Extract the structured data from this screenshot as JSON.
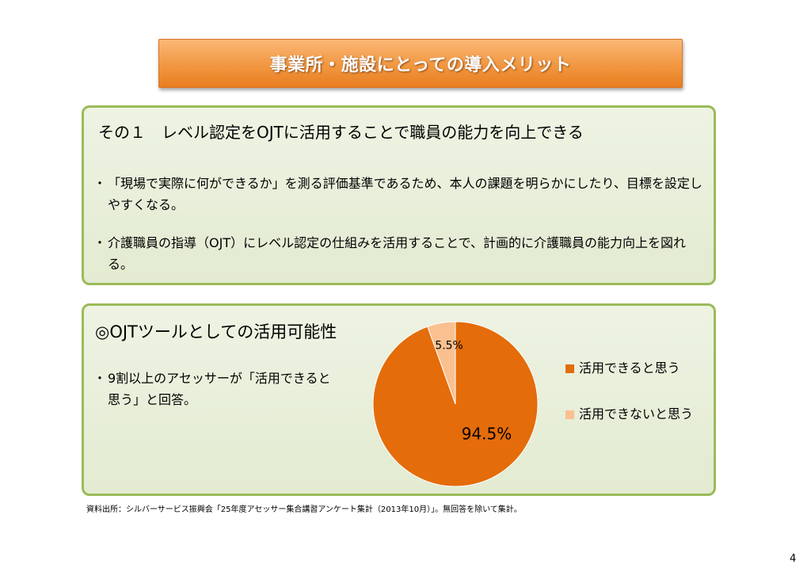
{
  "header": {
    "title": "事業所・施設にとっての導入メリット"
  },
  "panel1": {
    "heading": "その１　レベル認定をOJTに活用することで職員の能力を向上できる",
    "bullets": [
      {
        "marker": "・",
        "text": "「現場で実際に何ができるか」を測る評価基準であるため、本人の課題を明らかにしたり、目標を設定しやすくなる。"
      },
      {
        "marker": "・",
        "text": "介護職員の指導（OJT）にレベル認定の仕組みを活用することで、計画的に介護職員の能力向上を図れる。"
      }
    ]
  },
  "panel2": {
    "heading": "◎OJTツールとしての活用可能性",
    "bullets": [
      {
        "marker": "・",
        "text": "9割以上のアセッサーが「活用できると思う」と回答。"
      }
    ]
  },
  "chart_data": {
    "type": "pie",
    "categories": [
      "活用できると思う",
      "活用できないと思う"
    ],
    "values": [
      94.5,
      5.5
    ],
    "data_labels": [
      "94.5%",
      "5.5%"
    ],
    "colors": [
      "#e46c0a",
      "#fac08f"
    ],
    "legend": "right",
    "title": ""
  },
  "footer": {
    "source": "資料出所：シルバーサービス振興会「25年度アセッサー集合講習アンケート集計（2013年10月）」。無回答を除いて集計。",
    "page_number": "4"
  }
}
